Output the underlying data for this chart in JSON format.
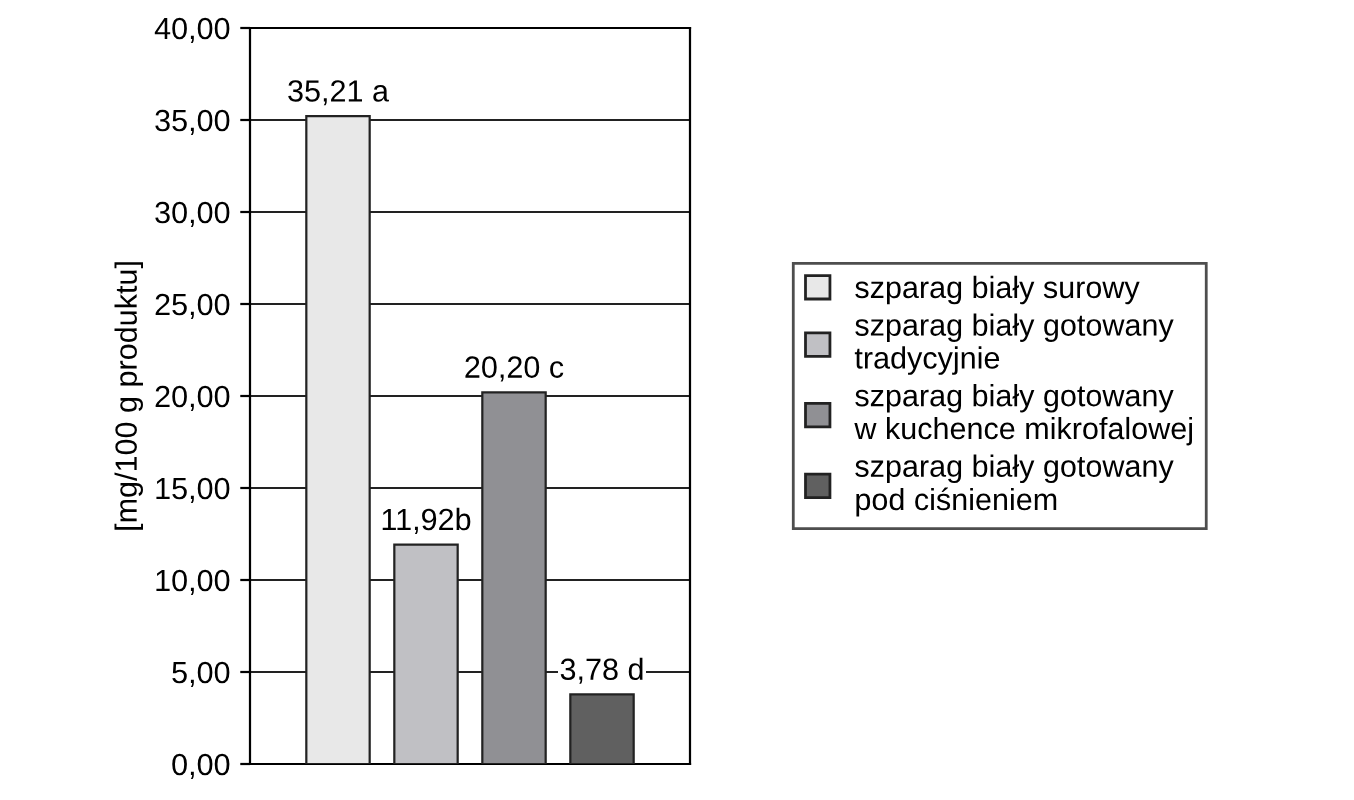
{
  "chart_data": {
    "type": "bar",
    "ylabel": "[mg/100 g produktu]",
    "categories": [
      null
    ],
    "series": [
      {
        "name": "szparag biały surowy",
        "color": "#e8e8e8",
        "values": [
          35.21
        ],
        "value_labels": [
          "35,21 a"
        ]
      },
      {
        "name": "szparag biały gotowany\ntradycyjnie",
        "color": "#c0c0c4",
        "values": [
          11.92
        ],
        "value_labels": [
          "11,92b"
        ]
      },
      {
        "name": "szparag biały gotowany\nw kuchence mikrofalowej",
        "color": "#909094",
        "values": [
          20.2
        ],
        "value_labels": [
          "20,20 c"
        ]
      },
      {
        "name": "szparag biały gotowany\npod ciśnieniem",
        "color": "#606060",
        "values": [
          3.78
        ],
        "value_labels": [
          "3,78 d"
        ]
      }
    ],
    "ylim": [
      0,
      40
    ],
    "yticks": [
      {
        "value": 0,
        "label": "0,00"
      },
      {
        "value": 5,
        "label": "5,00"
      },
      {
        "value": 10,
        "label": "10,00"
      },
      {
        "value": 15,
        "label": "15,00"
      },
      {
        "value": 20,
        "label": "20,00"
      },
      {
        "value": 25,
        "label": "25,00"
      },
      {
        "value": 30,
        "label": "30,00"
      },
      {
        "value": 35,
        "label": "35,00"
      },
      {
        "value": 40,
        "label": "40,00"
      }
    ],
    "grid": "y",
    "legend": "right"
  }
}
